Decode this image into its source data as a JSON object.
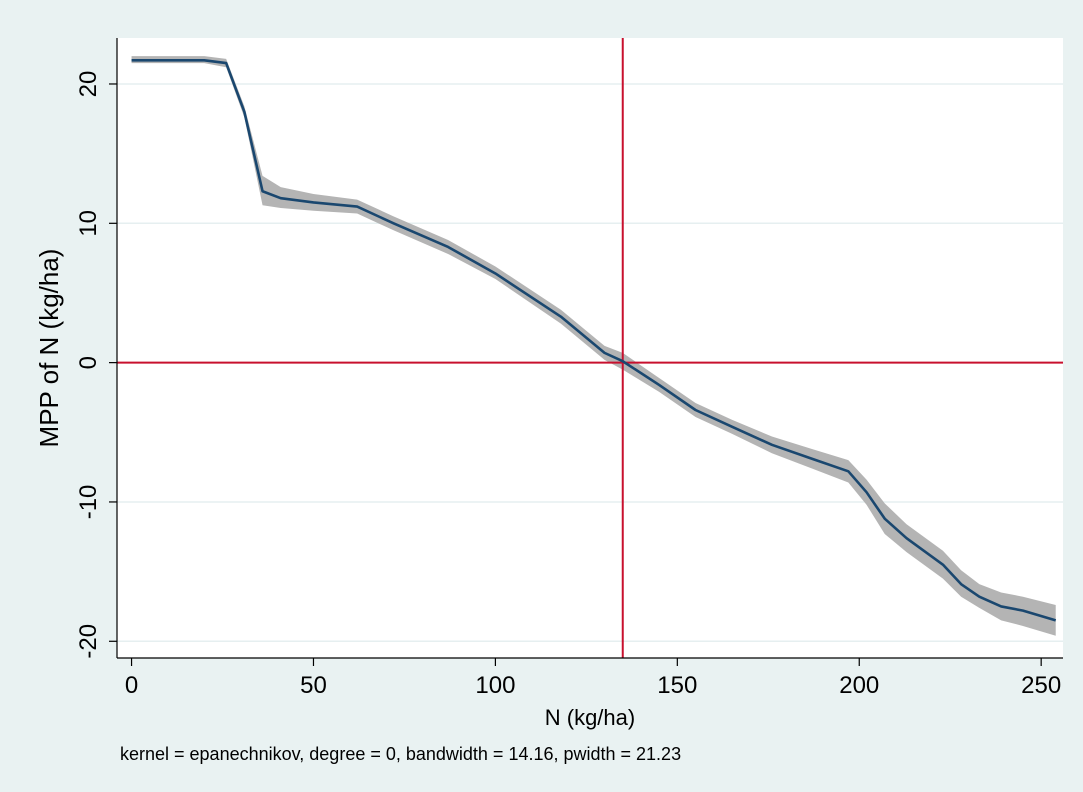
{
  "chart_data": {
    "type": "line",
    "xlabel": "N (kg/ha)",
    "ylabel": "MPP of N (kg/ha)",
    "note": "kernel = epanechnikov, degree = 0, bandwidth = 14.16, pwidth = 21.23",
    "xlim": [
      -4,
      256
    ],
    "ylim": [
      -21.2,
      23.3
    ],
    "x_ticks": [
      0,
      50,
      100,
      150,
      200,
      250
    ],
    "y_ticks": [
      -20,
      -10,
      0,
      10,
      20
    ],
    "x_tick_labels": [
      "0",
      "50",
      "100",
      "150",
      "200",
      "250"
    ],
    "y_tick_labels": [
      "-20",
      "-10",
      "0",
      "10",
      "20"
    ],
    "grid": true,
    "reference_lines": {
      "x": 135,
      "y": 0,
      "color": "#c8102e"
    },
    "colors": {
      "outer_background": "#e9f2f2",
      "plot_background": "#ffffff",
      "line": "#1a476f",
      "ci_band": "#b4b4b4",
      "grid": "#e6eff0"
    },
    "series": [
      {
        "x": [
          0,
          20,
          26,
          31,
          36,
          41,
          50,
          62,
          72,
          87,
          100,
          118,
          130,
          135,
          145,
          155,
          165,
          176,
          187,
          197,
          202,
          207,
          213,
          223,
          228,
          233,
          239,
          245,
          254
        ],
        "y": [
          21.7,
          21.7,
          21.5,
          18.0,
          12.3,
          11.8,
          11.5,
          11.2,
          10.0,
          8.3,
          6.4,
          3.3,
          0.7,
          0.1,
          -1.6,
          -3.4,
          -4.6,
          -5.9,
          -6.9,
          -7.8,
          -9.3,
          -11.2,
          -12.6,
          -14.5,
          -15.9,
          -16.8,
          -17.5,
          -17.8,
          -18.5
        ],
        "lower": [
          21.5,
          21.5,
          21.2,
          17.6,
          11.3,
          11.1,
          10.9,
          10.7,
          9.5,
          7.8,
          6.0,
          2.8,
          0.2,
          -0.5,
          -2.1,
          -3.9,
          -5.1,
          -6.5,
          -7.6,
          -8.6,
          -10.2,
          -12.3,
          -13.6,
          -15.5,
          -16.8,
          -17.6,
          -18.5,
          -18.9,
          -19.6
        ],
        "upper": [
          22.0,
          22.0,
          21.8,
          18.4,
          13.4,
          12.6,
          12.1,
          11.7,
          10.5,
          8.8,
          6.9,
          3.8,
          1.2,
          0.7,
          -1.1,
          -2.9,
          -4.1,
          -5.3,
          -6.2,
          -7.0,
          -8.4,
          -10.1,
          -11.6,
          -13.5,
          -14.9,
          -15.9,
          -16.5,
          -16.8,
          -17.4
        ]
      }
    ]
  }
}
